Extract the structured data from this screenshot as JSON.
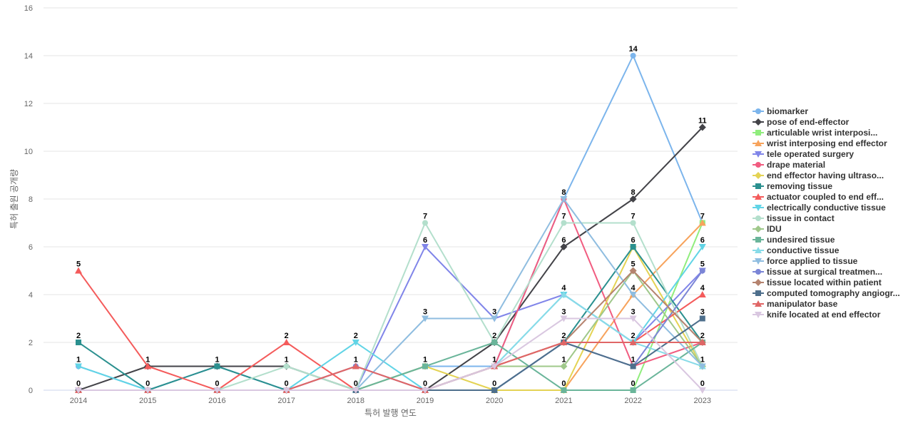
{
  "chart_data": {
    "type": "line",
    "title": "",
    "xlabel": "특허 발행 연도",
    "ylabel": "특허 출원 공개량",
    "ylim": [
      0,
      16
    ],
    "yticks": [
      0,
      2,
      4,
      6,
      8,
      10,
      12,
      14,
      16
    ],
    "grid": true,
    "legend_position": "right",
    "categories": [
      "2014",
      "2015",
      "2016",
      "2017",
      "2018",
      "2019",
      "2020",
      "2021",
      "2022",
      "2023"
    ],
    "series": [
      {
        "name": "biomarker",
        "color": "#7cb5ec",
        "marker": "circle",
        "values": [
          1,
          0,
          1,
          0,
          0,
          1,
          1,
          8,
          14,
          7
        ]
      },
      {
        "name": "pose of end-effector",
        "color": "#434348",
        "marker": "diamond",
        "values": [
          0,
          1,
          1,
          1,
          0,
          0,
          2,
          6,
          8,
          11
        ]
      },
      {
        "name": "articulable wrist interposi...",
        "color": "#90ed7d",
        "marker": "square",
        "values": [
          0,
          0,
          0,
          0,
          0,
          0,
          0,
          0,
          0,
          7
        ]
      },
      {
        "name": "wrist interposing end effector",
        "color": "#f7a35c",
        "marker": "triangle",
        "values": [
          0,
          0,
          0,
          0,
          0,
          0,
          0,
          0,
          4,
          7
        ]
      },
      {
        "name": "tele operated surgery",
        "color": "#8085e9",
        "marker": "triangle-down",
        "values": [
          0,
          0,
          0,
          0,
          0,
          6,
          3,
          4,
          2,
          5
        ]
      },
      {
        "name": "drape material",
        "color": "#f15c80",
        "marker": "circle",
        "values": [
          0,
          0,
          0,
          0,
          0,
          0,
          1,
          8,
          1,
          2
        ]
      },
      {
        "name": "end effector having ultraso...",
        "color": "#e4d354",
        "marker": "diamond",
        "values": [
          0,
          0,
          0,
          0,
          0,
          1,
          0,
          0,
          6,
          1
        ]
      },
      {
        "name": "removing tissue",
        "color": "#2b908f",
        "marker": "square",
        "values": [
          2,
          0,
          1,
          0,
          0,
          0,
          0,
          2,
          6,
          2
        ]
      },
      {
        "name": "actuator coupled to end eff...",
        "color": "#f45b5b",
        "marker": "triangle",
        "values": [
          5,
          1,
          0,
          2,
          0,
          0,
          1,
          2,
          2,
          4
        ]
      },
      {
        "name": "electrically conductive tissue",
        "color": "#61d4e6",
        "marker": "triangle-down",
        "values": [
          1,
          0,
          0,
          0,
          2,
          0,
          1,
          4,
          2,
          6
        ]
      },
      {
        "name": "tissue in contact",
        "color": "#b3dfcc",
        "marker": "circle",
        "values": [
          0,
          0,
          0,
          1,
          0,
          7,
          2,
          7,
          7,
          1
        ]
      },
      {
        "name": "IDU",
        "color": "#9fc88a",
        "marker": "diamond",
        "values": [
          0,
          0,
          0,
          0,
          0,
          0,
          1,
          1,
          5,
          1
        ]
      },
      {
        "name": "undesired tissue",
        "color": "#6ab59a",
        "marker": "square",
        "values": [
          0,
          0,
          0,
          0,
          0,
          1,
          2,
          0,
          0,
          2
        ]
      },
      {
        "name": "conductive tissue",
        "color": "#88dbe8",
        "marker": "triangle",
        "values": [
          0,
          0,
          0,
          0,
          0,
          0,
          1,
          4,
          2,
          1
        ]
      },
      {
        "name": "force applied to tissue",
        "color": "#8fbde0",
        "marker": "triangle-down",
        "values": [
          0,
          0,
          0,
          0,
          0,
          3,
          3,
          8,
          4,
          1
        ]
      },
      {
        "name": "tissue at surgical treatmen...",
        "color": "#7b85d6",
        "marker": "circle",
        "values": [
          0,
          0,
          0,
          0,
          1,
          0,
          0,
          2,
          1,
          5
        ]
      },
      {
        "name": "tissue located within patient",
        "color": "#b5836f",
        "marker": "diamond",
        "values": [
          0,
          0,
          0,
          0,
          0,
          0,
          1,
          2,
          5,
          2
        ]
      },
      {
        "name": "computed tomography angiogr...",
        "color": "#4e6f8c",
        "marker": "square",
        "values": [
          0,
          0,
          0,
          0,
          0,
          0,
          0,
          2,
          1,
          3
        ]
      },
      {
        "name": "manipulator base",
        "color": "#e06666",
        "marker": "triangle",
        "values": [
          0,
          0,
          0,
          0,
          1,
          0,
          1,
          2,
          2,
          2
        ]
      },
      {
        "name": "knife located at end effector",
        "color": "#d9c7e0",
        "marker": "triangle-down",
        "values": [
          0,
          0,
          0,
          0,
          0,
          0,
          1,
          3,
          3,
          0
        ]
      }
    ],
    "data_labels": [
      {
        "x": "2014",
        "value": "5"
      },
      {
        "x": "2014",
        "value": "2"
      },
      {
        "x": "2014",
        "value": "1"
      },
      {
        "x": "2014",
        "value": "0"
      },
      {
        "x": "2015",
        "value": "1"
      },
      {
        "x": "2015",
        "value": "0"
      },
      {
        "x": "2016",
        "value": "1"
      },
      {
        "x": "2016",
        "value": "0"
      },
      {
        "x": "2017",
        "value": "2"
      },
      {
        "x": "2017",
        "value": "1"
      },
      {
        "x": "2017",
        "value": "0"
      },
      {
        "x": "2018",
        "value": "2"
      },
      {
        "x": "2018",
        "value": "1"
      },
      {
        "x": "2018",
        "value": "0"
      },
      {
        "x": "2019",
        "value": "7"
      },
      {
        "x": "2019",
        "value": "6"
      },
      {
        "x": "2019",
        "value": "3"
      },
      {
        "x": "2019",
        "value": "1"
      },
      {
        "x": "2019",
        "value": "0"
      },
      {
        "x": "2020",
        "value": "3"
      },
      {
        "x": "2020",
        "value": "2"
      },
      {
        "x": "2020",
        "value": "1"
      },
      {
        "x": "2020",
        "value": "0"
      },
      {
        "x": "2021",
        "value": "8"
      },
      {
        "x": "2021",
        "value": "7"
      },
      {
        "x": "2021",
        "value": "6"
      },
      {
        "x": "2021",
        "value": "4"
      },
      {
        "x": "2021",
        "value": "3"
      },
      {
        "x": "2021",
        "value": "2"
      },
      {
        "x": "2021",
        "value": "1"
      },
      {
        "x": "2021",
        "value": "0"
      },
      {
        "x": "2022",
        "value": "14"
      },
      {
        "x": "2022",
        "value": "8"
      },
      {
        "x": "2022",
        "value": "7"
      },
      {
        "x": "2022",
        "value": "6"
      },
      {
        "x": "2022",
        "value": "5"
      },
      {
        "x": "2022",
        "value": "4"
      },
      {
        "x": "2022",
        "value": "3"
      },
      {
        "x": "2022",
        "value": "2"
      },
      {
        "x": "2022",
        "value": "1"
      },
      {
        "x": "2022",
        "value": "0"
      },
      {
        "x": "2023",
        "value": "11"
      },
      {
        "x": "2023",
        "value": "7"
      },
      {
        "x": "2023",
        "value": "6"
      },
      {
        "x": "2023",
        "value": "5"
      },
      {
        "x": "2023",
        "value": "4"
      },
      {
        "x": "2023",
        "value": "3"
      },
      {
        "x": "2023",
        "value": "2"
      },
      {
        "x": "2023",
        "value": "1"
      },
      {
        "x": "2023",
        "value": "0"
      }
    ]
  }
}
